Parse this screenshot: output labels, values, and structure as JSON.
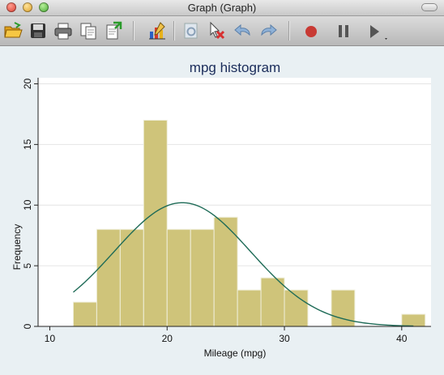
{
  "window": {
    "title": "Graph (Graph)"
  },
  "toolbar": {
    "buttons": [
      {
        "name": "open-icon"
      },
      {
        "name": "save-icon"
      },
      {
        "name": "print-icon"
      },
      {
        "name": "copy-icon"
      },
      {
        "name": "export-icon"
      },
      {
        "name": "graph-editor-icon"
      },
      {
        "name": "object-browser-icon"
      },
      {
        "name": "pointer-delete-icon"
      },
      {
        "name": "undo-icon"
      },
      {
        "name": "redo-icon"
      },
      {
        "name": "record-icon"
      },
      {
        "name": "pause-icon"
      },
      {
        "name": "play-icon"
      }
    ]
  },
  "chart_data": {
    "type": "bar",
    "title": "mpg histogram",
    "xlabel": "Mileage (mpg)",
    "ylabel": "Frequency",
    "xlim": [
      9,
      42.5
    ],
    "ylim": [
      0,
      20.5
    ],
    "xticks": [
      10,
      20,
      30,
      40
    ],
    "yticks": [
      0,
      5,
      10,
      15,
      20
    ],
    "bin_width": 2,
    "bins": [
      {
        "x0": 12,
        "count": 2
      },
      {
        "x0": 14,
        "count": 8
      },
      {
        "x0": 16,
        "count": 8
      },
      {
        "x0": 18,
        "count": 17
      },
      {
        "x0": 20,
        "count": 8
      },
      {
        "x0": 22,
        "count": 8
      },
      {
        "x0": 24,
        "count": 9
      },
      {
        "x0": 26,
        "count": 3
      },
      {
        "x0": 28,
        "count": 4
      },
      {
        "x0": 30,
        "count": 3
      },
      {
        "x0": 32,
        "count": 0
      },
      {
        "x0": 34,
        "count": 3
      },
      {
        "x0": 36,
        "count": 0
      },
      {
        "x0": 38,
        "count": 0
      },
      {
        "x0": 40,
        "count": 1
      }
    ],
    "normal_overlay": {
      "mean": 21.3,
      "sd": 5.8,
      "x_range": [
        12,
        41
      ],
      "peak": 10.2
    },
    "colors": {
      "bar": "#cfc47a",
      "bar_edge": "#efeeda",
      "curve": "#1e6b57",
      "title": "#1a2c5a",
      "grid": "#e4e4e4",
      "plot_bg": "#ffffff",
      "outer_bg": "#e9f0f3"
    },
    "grid": true
  }
}
